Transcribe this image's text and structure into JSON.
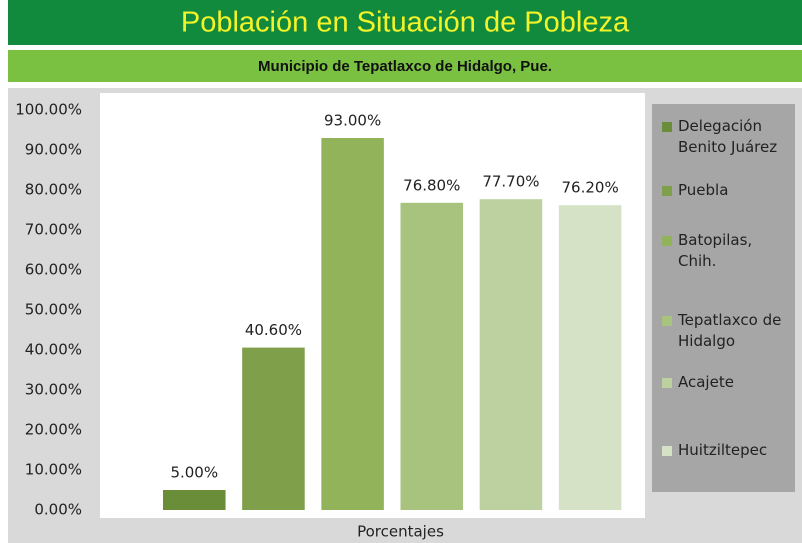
{
  "chart_data": {
    "type": "bar",
    "title": "Población en Situación de Pobleza",
    "subtitle": "Municipio de Tepatlaxco de Hidalgo, Pue.",
    "categories": [
      "Porcentajes"
    ],
    "series": [
      {
        "name": "Delegación Benito Juárez",
        "color": "#6a8d39",
        "values": [
          5.0
        ],
        "value_labels": [
          "5.00%"
        ]
      },
      {
        "name": "Puebla",
        "color": "#7f9f4b",
        "values": [
          40.6
        ],
        "value_labels": [
          "40.60%"
        ]
      },
      {
        "name": "Batopilas, Chih.",
        "color": "#93b35b",
        "values": [
          93.0
        ],
        "value_labels": [
          "93.00%"
        ]
      },
      {
        "name": "Tepatlaxco de Hidalgo",
        "color": "#a8c37d",
        "values": [
          76.8
        ],
        "value_labels": [
          "76.80%"
        ]
      },
      {
        "name": "Acajete",
        "color": "#bdd1a0",
        "values": [
          77.7
        ],
        "value_labels": [
          "77.70%"
        ]
      },
      {
        "name": "Huitziltepec",
        "color": "#d5e2c5",
        "values": [
          76.2
        ],
        "value_labels": [
          "76.20%"
        ]
      }
    ],
    "ylim": [
      0,
      100
    ],
    "yticks": [
      {
        "value": 0,
        "label": "0.00%"
      },
      {
        "value": 10,
        "label": "10.00%"
      },
      {
        "value": 20,
        "label": "20.00%"
      },
      {
        "value": 30,
        "label": "30.00%"
      },
      {
        "value": 40,
        "label": "40.00%"
      },
      {
        "value": 50,
        "label": "50.00%"
      },
      {
        "value": 60,
        "label": "60.00%"
      },
      {
        "value": 70,
        "label": "70.00%"
      },
      {
        "value": 80,
        "label": "80.00%"
      },
      {
        "value": 90,
        "label": "90.00%"
      },
      {
        "value": 100,
        "label": "100.00%"
      }
    ],
    "grid": false,
    "legend": "right"
  }
}
